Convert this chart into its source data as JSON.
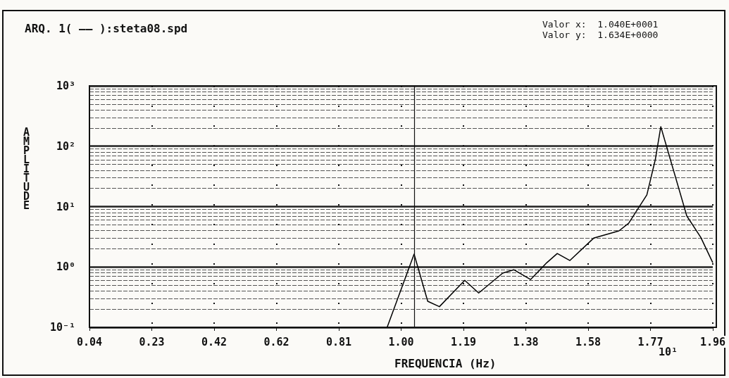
{
  "chart_data": {
    "type": "line",
    "title": "ARQ. 1( —— ):steta08.spd",
    "xlabel": "FREQUENCIA (Hz)",
    "ylabel": "AMPLITUDE",
    "annotations": [
      "Valor x:  1.040E+0001",
      "Valor y:  1.634E+0000",
      "10¹"
    ],
    "x": [
      0.957,
      1.04,
      1.082,
      1.118,
      1.196,
      1.239,
      1.313,
      1.347,
      1.399,
      1.449,
      1.481,
      1.52,
      1.593,
      1.671,
      1.701,
      1.757,
      1.783,
      1.8,
      1.88,
      1.923,
      1.96
    ],
    "series": [
      {
        "color": "#000000",
        "values": [
          0.1,
          1.634,
          0.27,
          0.22,
          0.6,
          0.37,
          0.79,
          0.9,
          0.62,
          1.18,
          1.67,
          1.28,
          3.0,
          3.96,
          5.3,
          15.6,
          60,
          211,
          7.0,
          3.1,
          1.18
        ]
      }
    ],
    "xlim": [
      0.04,
      1.96
    ],
    "xticks": [
      {
        "value": 0.04,
        "label": "0.04"
      },
      {
        "value": 0.232,
        "label": "0.23"
      },
      {
        "value": 0.424,
        "label": "0.42"
      },
      {
        "value": 0.616,
        "label": "0.62"
      },
      {
        "value": 0.808,
        "label": "0.81"
      },
      {
        "value": 1.0,
        "label": "1.00"
      },
      {
        "value": 1.192,
        "label": "1.19"
      },
      {
        "value": 1.384,
        "label": "1.38"
      },
      {
        "value": 1.576,
        "label": "1.58"
      },
      {
        "value": 1.768,
        "label": "1.77"
      },
      {
        "value": 1.96,
        "label": "1.96"
      }
    ],
    "ylim": [
      0.1,
      1000
    ],
    "log": "y",
    "yticks": [
      {
        "value": 0.1,
        "label": "10⁻¹"
      },
      {
        "value": 1,
        "label": "10⁰"
      },
      {
        "value": 10,
        "label": "10¹"
      },
      {
        "value": 100,
        "label": "10²"
      },
      {
        "value": 1000,
        "label": "10³"
      }
    ],
    "ref_lines": [
      {
        "axis": "x",
        "value": 1.04
      }
    ],
    "grid": true,
    "marker": "none",
    "line_style": "solid"
  }
}
